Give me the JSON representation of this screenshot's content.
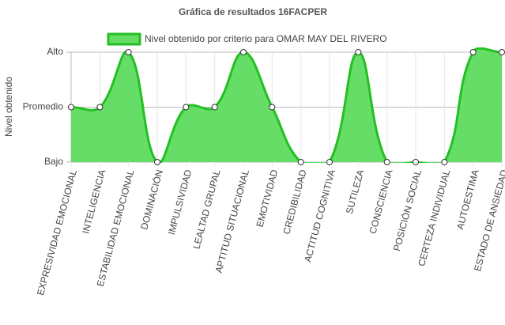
{
  "chart_data": {
    "type": "line",
    "title": "Gráfica de resultados 16FACPER",
    "y_label": "Nivel obtenido",
    "categories": [
      "EXPRESIVIDAD EMOCIONAL",
      "INTELIGENCIA",
      "ESTABILIDAD EMOCIONAL",
      "DOMINACIÓN",
      "IMPULSIVIDAD",
      "LEALTAD GRUPAL",
      "APTITUD SITUACIONAL",
      "EMOTIVIDAD",
      "CREDIBILIDAD",
      "ACTITUD COGNITIVA",
      "SUTILEZA",
      "CONSCIENCIA",
      "POSICIÓN SOCIAL",
      "CERTEZA INDIVIDUAL",
      "AUTOESTIMA",
      "ESTADO DE ANSIEDAD"
    ],
    "series": [
      {
        "name": "Nivel obtenido por criterio para OMAR MAY DEL RIVERO",
        "color": "#22c122",
        "fill": "#66dd66",
        "values": [
          2,
          2,
          3,
          1,
          2,
          2,
          3,
          2,
          1,
          1,
          3,
          1,
          1,
          1,
          3,
          3
        ]
      }
    ],
    "ylim": [
      1,
      3
    ],
    "yticks": [
      {
        "value": 1,
        "label": "Bajo"
      },
      {
        "value": 2,
        "label": "Promedio"
      },
      {
        "value": 3,
        "label": "Alto"
      }
    ],
    "grid": true,
    "legend": "top"
  }
}
